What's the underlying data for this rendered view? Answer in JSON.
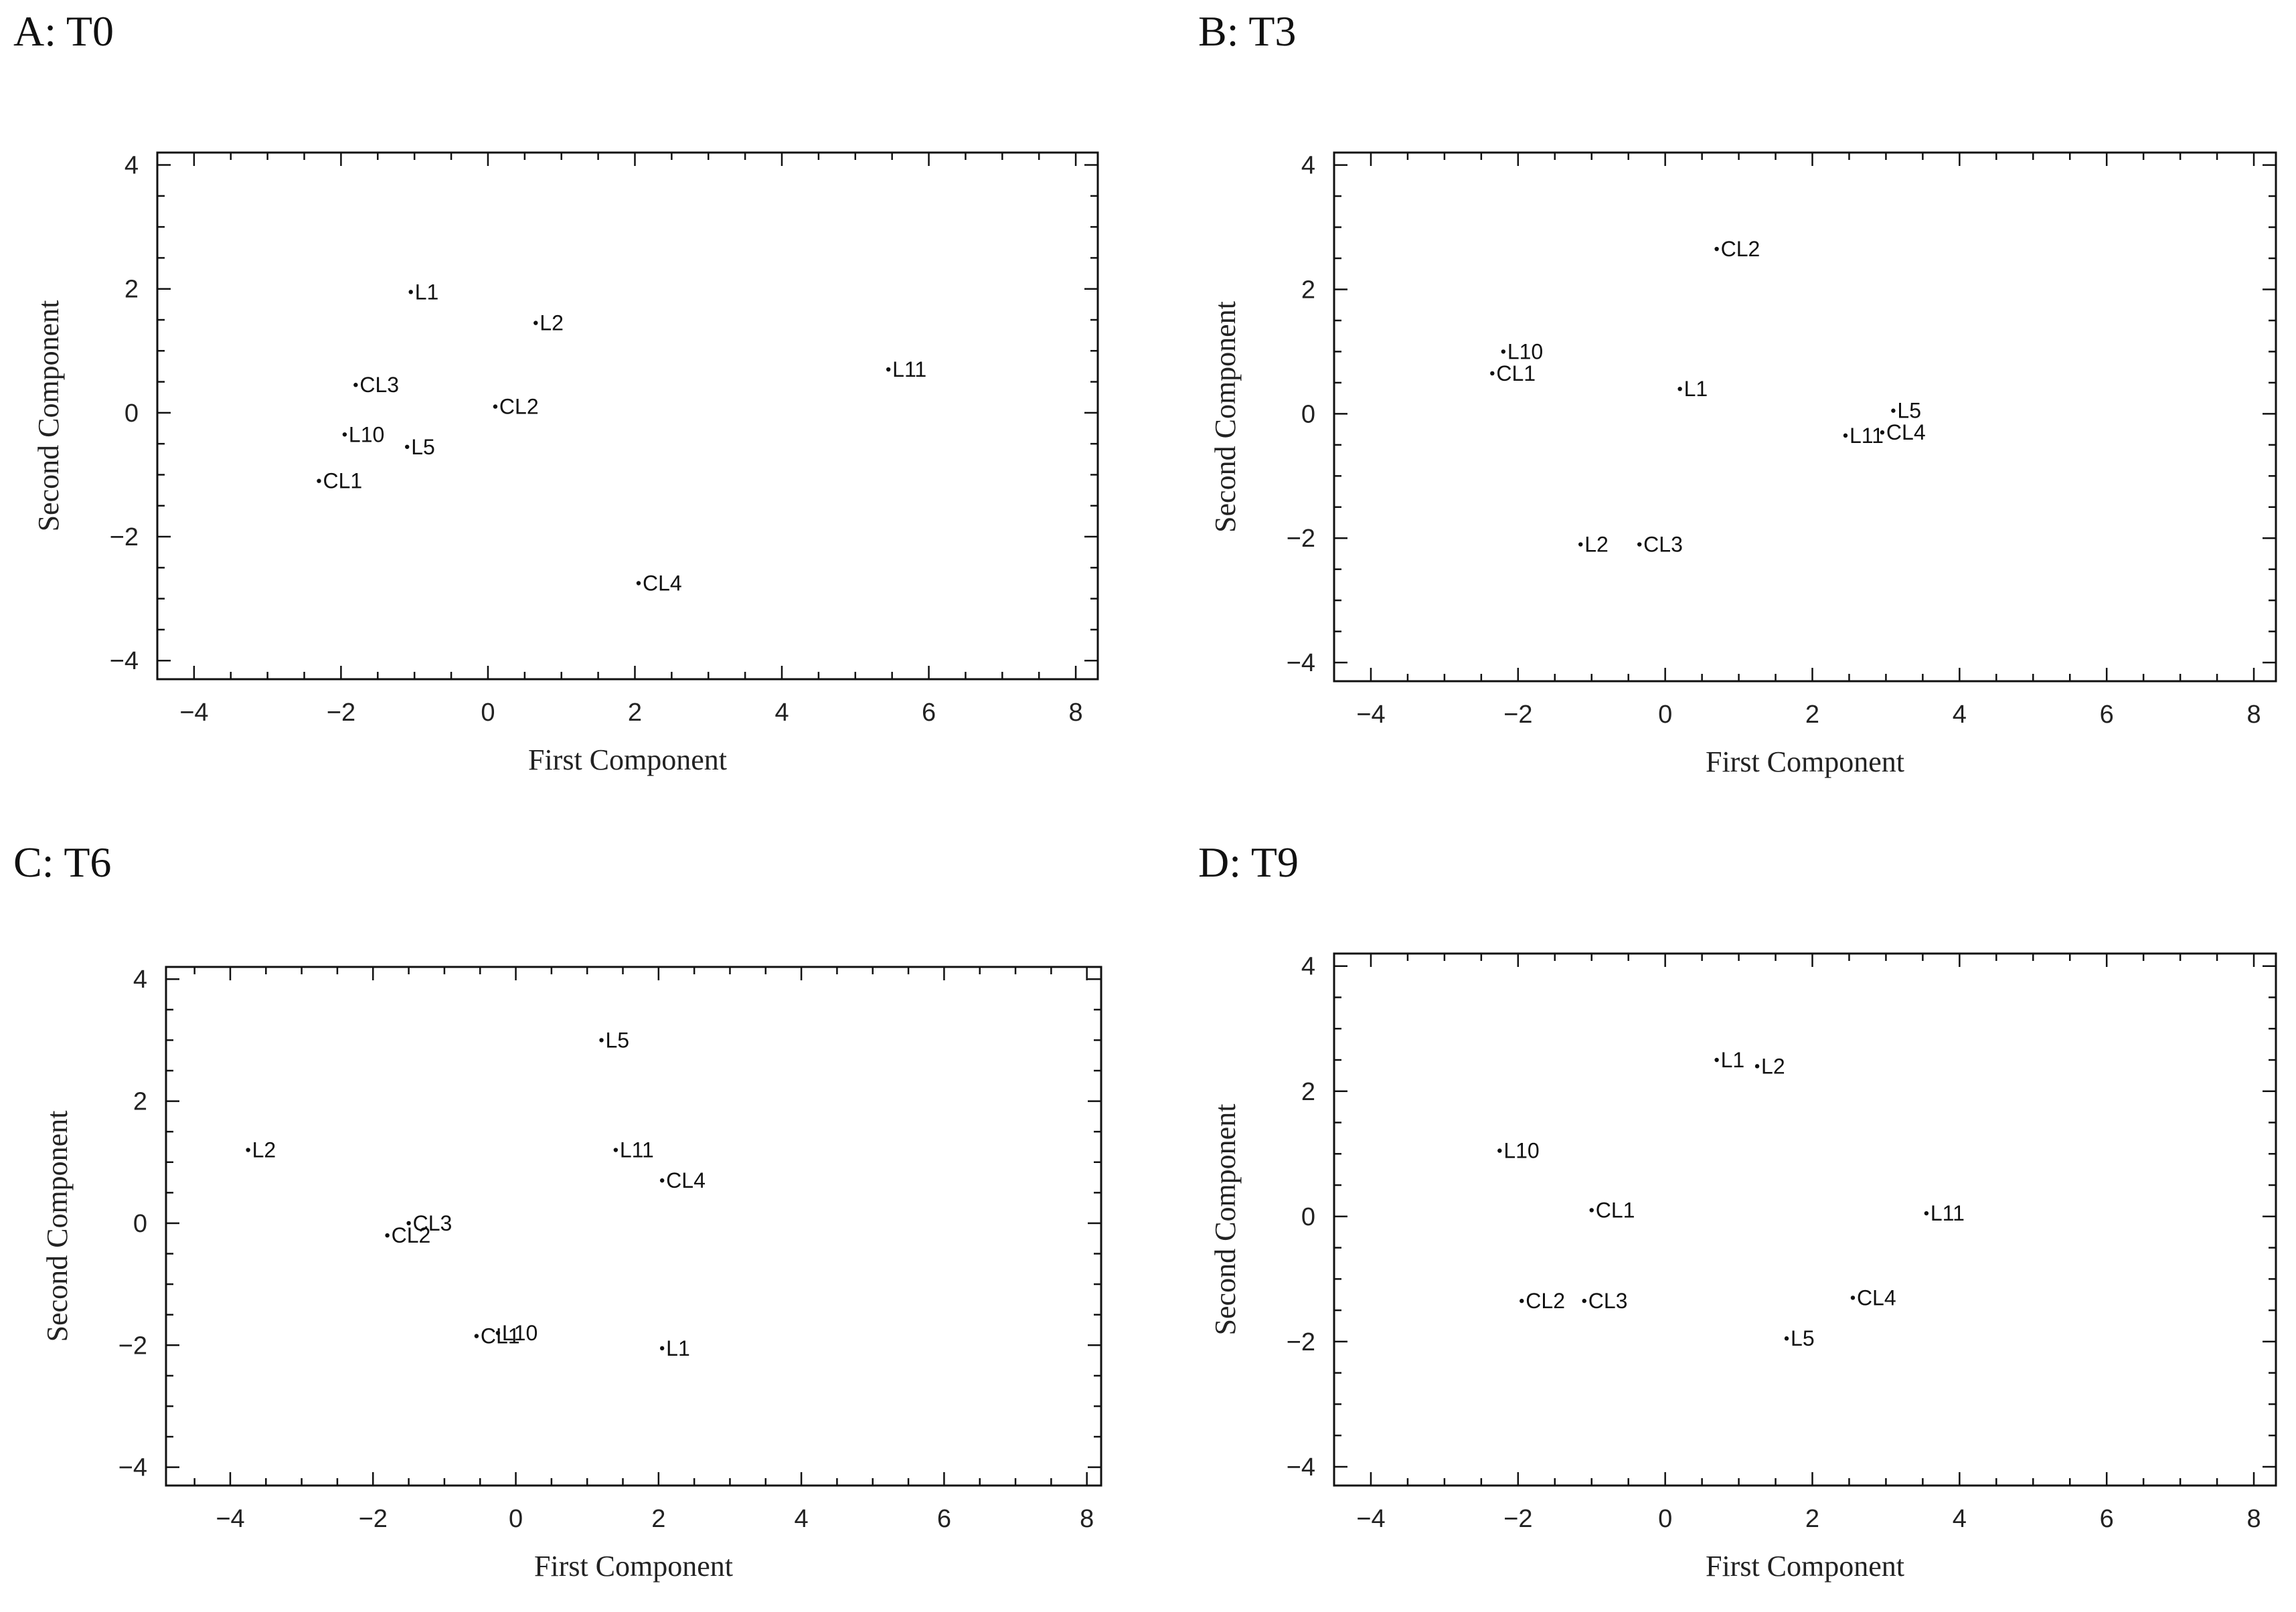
{
  "chart_data": [
    {
      "type": "scatter",
      "title": "A: T0",
      "xlabel": "First Component",
      "ylabel": "Second Component",
      "xlim": [
        -4.5,
        8.3
      ],
      "ylim": [
        -4.3,
        4.2
      ],
      "xticks": [
        -4,
        -2,
        0,
        2,
        4,
        6,
        8
      ],
      "yticks": [
        -4,
        -2,
        0,
        2,
        4
      ],
      "points": [
        {
          "label": "L1",
          "x": -1.05,
          "y": 1.95
        },
        {
          "label": "L2",
          "x": 0.65,
          "y": 1.45
        },
        {
          "label": "L11",
          "x": 5.45,
          "y": 0.7
        },
        {
          "label": "CL3",
          "x": -1.8,
          "y": 0.45
        },
        {
          "label": "CL2",
          "x": 0.1,
          "y": 0.1
        },
        {
          "label": "L10",
          "x": -1.95,
          "y": -0.35
        },
        {
          "label": "L5",
          "x": -1.1,
          "y": -0.55
        },
        {
          "label": "CL1",
          "x": -2.3,
          "y": -1.1
        },
        {
          "label": "CL4",
          "x": 2.05,
          "y": -2.75
        }
      ]
    },
    {
      "type": "scatter",
      "title": "B: T3",
      "xlabel": "First Component",
      "ylabel": "Second Component",
      "xlim": [
        -4.5,
        8.3
      ],
      "ylim": [
        -4.3,
        4.2
      ],
      "xticks": [
        -4,
        -2,
        0,
        2,
        4,
        6,
        8
      ],
      "yticks": [
        -4,
        -2,
        0,
        2,
        4
      ],
      "points": [
        {
          "label": "CL2",
          "x": 0.7,
          "y": 2.65
        },
        {
          "label": "L10",
          "x": -2.2,
          "y": 1.0
        },
        {
          "label": "CL1",
          "x": -2.35,
          "y": 0.65
        },
        {
          "label": "L1",
          "x": 0.2,
          "y": 0.4
        },
        {
          "label": "L5",
          "x": 3.1,
          "y": 0.05
        },
        {
          "label": "CL4",
          "x": 2.95,
          "y": -0.3
        },
        {
          "label": "L11",
          "x": 2.45,
          "y": -0.35
        },
        {
          "label": "L2",
          "x": -1.15,
          "y": -2.1
        },
        {
          "label": "CL3",
          "x": -0.35,
          "y": -2.1
        }
      ]
    },
    {
      "type": "scatter",
      "title": "C: T6",
      "xlabel": "First Component",
      "ylabel": "Second Component",
      "xlim": [
        -4.9,
        8.2
      ],
      "ylim": [
        -4.3,
        4.2
      ],
      "xticks": [
        -4,
        -2,
        0,
        2,
        4,
        6,
        8
      ],
      "yticks": [
        -4,
        -2,
        0,
        2,
        4
      ],
      "points": [
        {
          "label": "L5",
          "x": 1.2,
          "y": 3.0
        },
        {
          "label": "L2",
          "x": -3.75,
          "y": 1.2
        },
        {
          "label": "L11",
          "x": 1.4,
          "y": 1.2
        },
        {
          "label": "CL4",
          "x": 2.05,
          "y": 0.7
        },
        {
          "label": "CL3",
          "x": -1.5,
          "y": 0.0
        },
        {
          "label": "CL2",
          "x": -1.8,
          "y": -0.2
        },
        {
          "label": "L10",
          "x": -0.25,
          "y": -1.8
        },
        {
          "label": "CL1",
          "x": -0.55,
          "y": -1.85
        },
        {
          "label": "L1",
          "x": 2.05,
          "y": -2.05
        }
      ]
    },
    {
      "type": "scatter",
      "title": "D: T9",
      "xlabel": "First Component",
      "ylabel": "Second Component",
      "xlim": [
        -4.5,
        8.3
      ],
      "ylim": [
        -4.3,
        4.2
      ],
      "xticks": [
        -4,
        -2,
        0,
        2,
        4,
        6,
        8
      ],
      "yticks": [
        -4,
        -2,
        0,
        2,
        4
      ],
      "points": [
        {
          "label": "L1",
          "x": 0.7,
          "y": 2.5
        },
        {
          "label": "L2",
          "x": 1.25,
          "y": 2.4
        },
        {
          "label": "L10",
          "x": -2.25,
          "y": 1.05
        },
        {
          "label": "CL1",
          "x": -1.0,
          "y": 0.1
        },
        {
          "label": "L11",
          "x": 3.55,
          "y": 0.05
        },
        {
          "label": "CL4",
          "x": 2.55,
          "y": -1.3
        },
        {
          "label": "CL2",
          "x": -1.95,
          "y": -1.35
        },
        {
          "label": "CL3",
          "x": -1.1,
          "y": -1.35
        },
        {
          "label": "L5",
          "x": 1.65,
          "y": -1.95
        }
      ]
    }
  ]
}
